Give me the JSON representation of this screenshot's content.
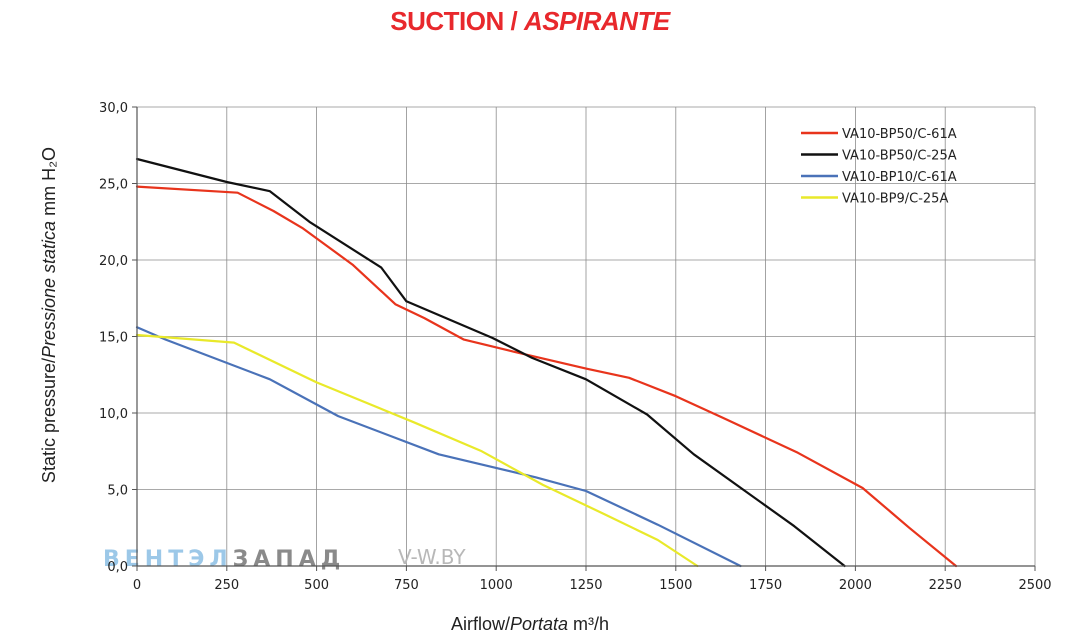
{
  "title": {
    "main": "SUCTION / ",
    "italic": "ASPIRANTE"
  },
  "watermark": {
    "brand_a": "ВЕНТЭЛ",
    "brand_b": "ЗАПАД",
    "site": "V-W.BY",
    "color_a": "#9cc8e8",
    "color_b": "#8a8a8a",
    "color_site": "#b8b8b8"
  },
  "chart_data": {
    "type": "line",
    "xlabel": {
      "main": "Airflow/",
      "italic": "Portata",
      "unit": " m³/h"
    },
    "ylabel": {
      "main": "Static pressure/",
      "italic": "Pressione statica",
      "unit": " mm H₂O"
    },
    "xlim": [
      0,
      2500
    ],
    "ylim": [
      0,
      30
    ],
    "x_ticks": [
      "0",
      "250",
      "500",
      "750",
      "1000",
      "1250",
      "1500",
      "1750",
      "2000",
      "2250",
      "2500"
    ],
    "y_ticks": [
      "0,0",
      "5,0",
      "10,0",
      "15,0",
      "20,0",
      "25,0",
      "30,0"
    ],
    "grid": true,
    "legend_position": "top-right",
    "series": [
      {
        "name": "VA10-BP50/C-61A",
        "color": "#e8341c",
        "points": [
          [
            0,
            24.8
          ],
          [
            280,
            24.4
          ],
          [
            380,
            23.2
          ],
          [
            460,
            22.1
          ],
          [
            600,
            19.7
          ],
          [
            720,
            17.1
          ],
          [
            800,
            16.2
          ],
          [
            910,
            14.8
          ],
          [
            1050,
            14.0
          ],
          [
            1250,
            12.9
          ],
          [
            1370,
            12.3
          ],
          [
            1500,
            11.1
          ],
          [
            1630,
            9.7
          ],
          [
            1840,
            7.4
          ],
          [
            2020,
            5.1
          ],
          [
            2150,
            2.5
          ],
          [
            2280,
            0
          ]
        ]
      },
      {
        "name": "VA10-BP50/C-25A",
        "color": "#111111",
        "points": [
          [
            0,
            26.6
          ],
          [
            250,
            25.1
          ],
          [
            370,
            24.5
          ],
          [
            480,
            22.5
          ],
          [
            680,
            19.5
          ],
          [
            750,
            17.3
          ],
          [
            990,
            14.9
          ],
          [
            1100,
            13.6
          ],
          [
            1250,
            12.2
          ],
          [
            1420,
            9.9
          ],
          [
            1550,
            7.3
          ],
          [
            1830,
            2.6
          ],
          [
            1970,
            0
          ]
        ]
      },
      {
        "name": "VA10-BP10/C-61A",
        "color": "#4a72b8",
        "points": [
          [
            0,
            15.6
          ],
          [
            80,
            14.8
          ],
          [
            370,
            12.2
          ],
          [
            560,
            9.8
          ],
          [
            840,
            7.3
          ],
          [
            1110,
            5.8
          ],
          [
            1250,
            4.9
          ],
          [
            1450,
            2.7
          ],
          [
            1680,
            0
          ]
        ]
      },
      {
        "name": "VA10-BP9/C-25A",
        "color": "#e9e92a",
        "points": [
          [
            0,
            15.1
          ],
          [
            270,
            14.6
          ],
          [
            500,
            12.0
          ],
          [
            770,
            9.4
          ],
          [
            960,
            7.5
          ],
          [
            1130,
            5.3
          ],
          [
            1300,
            3.4
          ],
          [
            1450,
            1.7
          ],
          [
            1560,
            0
          ]
        ]
      }
    ]
  }
}
